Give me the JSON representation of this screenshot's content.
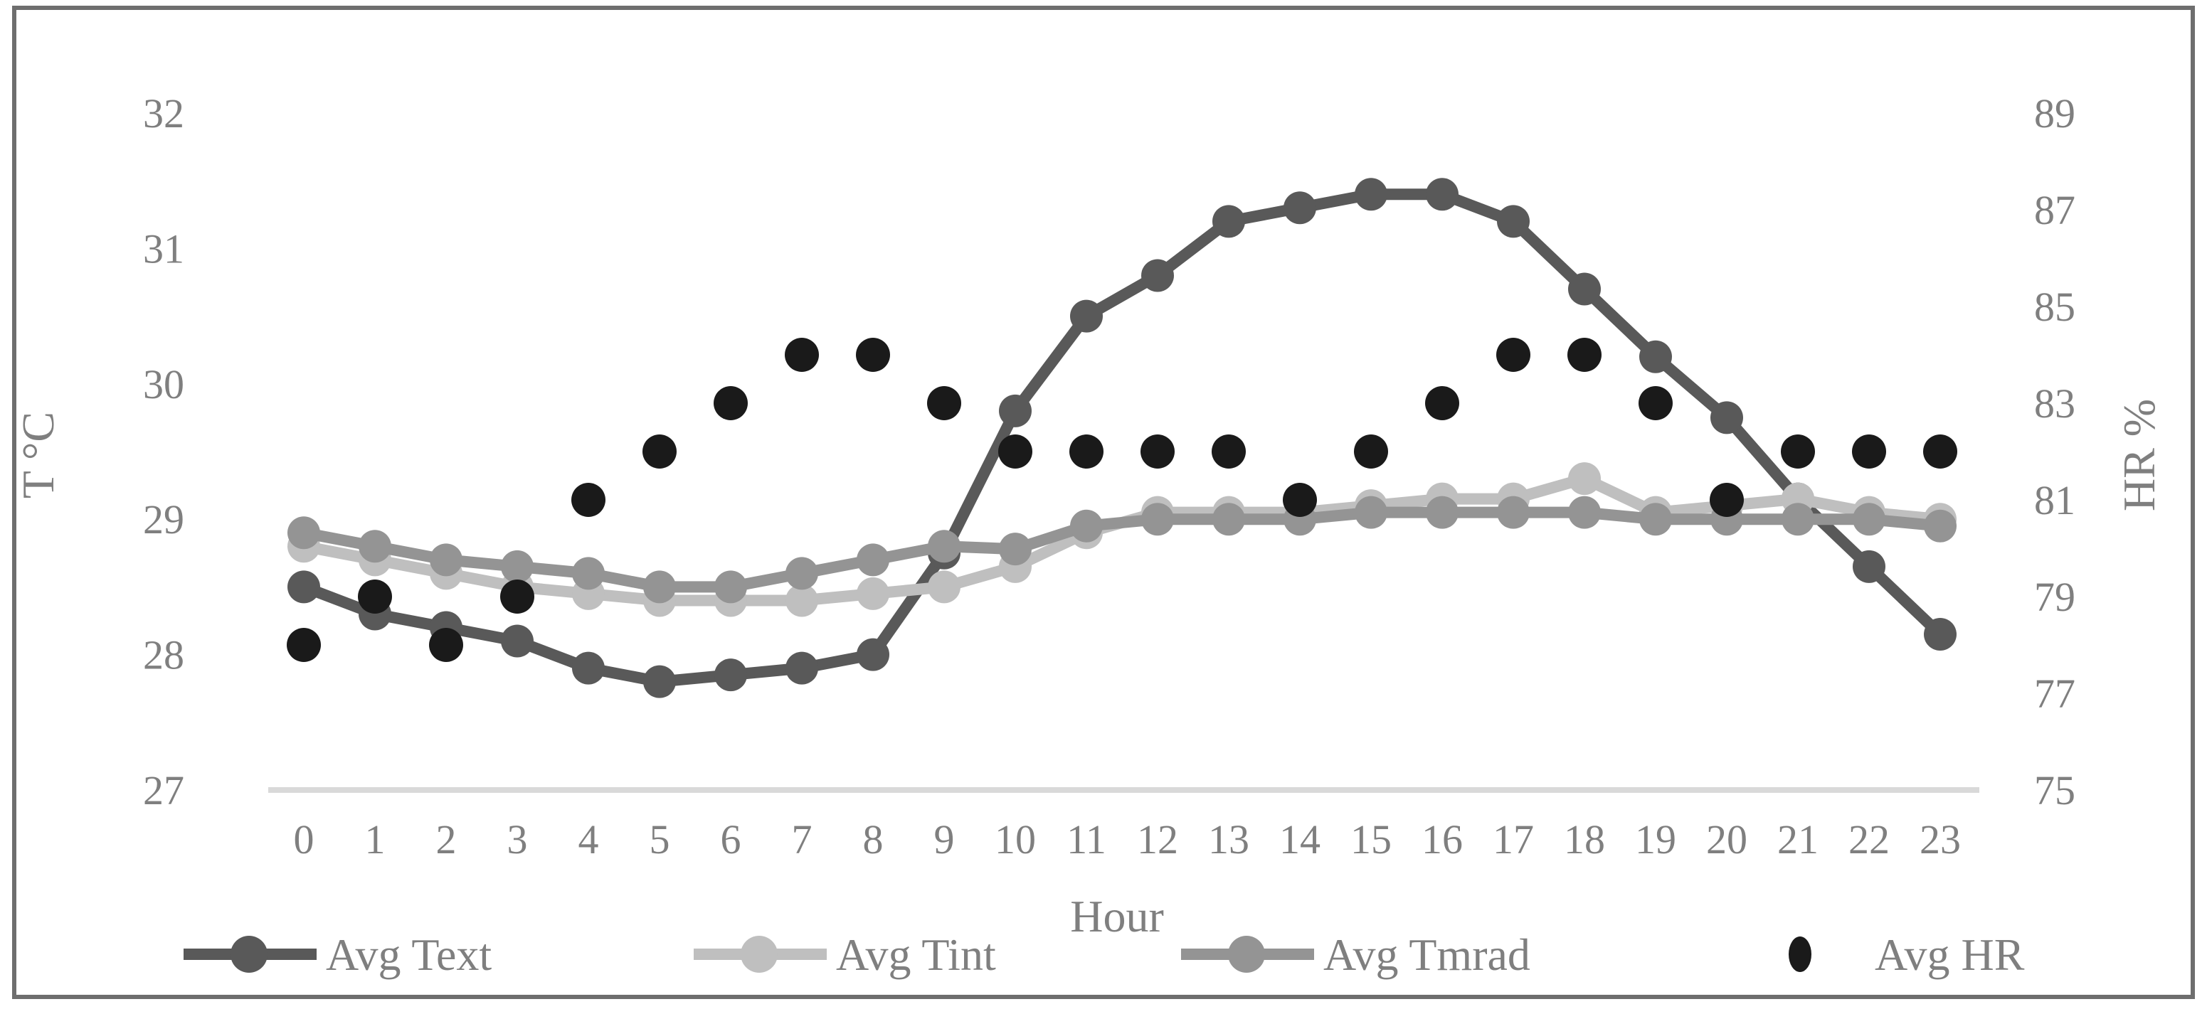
{
  "figure": {
    "background": "#ffffff",
    "border_color": "#6e6e6e",
    "text_color": "#7f7f7f",
    "gridline_color": "#d9d9d9"
  },
  "chart_data": {
    "type": "line",
    "title": "",
    "xlabel": "Hour",
    "ylabel_left": "T °C",
    "ylabel_right": "HR %",
    "x": [
      0,
      1,
      2,
      3,
      4,
      5,
      6,
      7,
      8,
      9,
      10,
      11,
      12,
      13,
      14,
      15,
      16,
      17,
      18,
      19,
      20,
      21,
      22,
      23
    ],
    "x_tick_labels": [
      "0",
      "1",
      "2",
      "3",
      "4",
      "5",
      "6",
      "7",
      "8",
      "9",
      "10",
      "11",
      "12",
      "13",
      "14",
      "15",
      "16",
      "17",
      "18",
      "19",
      "20",
      "21",
      "22",
      "23"
    ],
    "y_left_axis": {
      "min": 27,
      "max": 32,
      "tick_step": 1,
      "ticks": [
        32,
        31,
        30,
        29,
        28,
        27
      ]
    },
    "y_right_axis": {
      "min": 75,
      "max": 89,
      "tick_step": 2,
      "ticks": [
        89,
        87,
        85,
        83,
        81,
        79,
        77,
        75
      ]
    },
    "grid": "baseline-only",
    "legend_position": "bottom",
    "series": [
      {
        "name": "Avg Text",
        "axis": "left",
        "style": "line-markers",
        "color": "#595959",
        "values": [
          28.5,
          28.3,
          28.2,
          28.1,
          27.9,
          27.8,
          27.85,
          27.9,
          28.0,
          28.75,
          29.8,
          30.5,
          30.8,
          31.2,
          31.3,
          31.4,
          31.4,
          31.2,
          30.7,
          30.2,
          29.75,
          29.15,
          28.65,
          28.15
        ]
      },
      {
        "name": "Avg Tint",
        "axis": "left",
        "style": "line-markers",
        "color": "#bfbfbf",
        "values": [
          28.8,
          28.7,
          28.6,
          28.5,
          28.45,
          28.4,
          28.4,
          28.4,
          28.45,
          28.5,
          28.65,
          28.9,
          29.05,
          29.05,
          29.05,
          29.1,
          29.15,
          29.15,
          29.3,
          29.05,
          29.1,
          29.15,
          29.05,
          29.0
        ]
      },
      {
        "name": "Avg Tmrad",
        "axis": "left",
        "style": "line-markers",
        "color": "#949494",
        "values": [
          28.9,
          28.8,
          28.7,
          28.65,
          28.6,
          28.5,
          28.5,
          28.6,
          28.7,
          28.8,
          28.78,
          28.95,
          29.0,
          29.0,
          29.0,
          29.05,
          29.05,
          29.05,
          29.05,
          29.0,
          29.0,
          29.0,
          29.0,
          28.95
        ]
      },
      {
        "name": "Avg HR",
        "axis": "right",
        "style": "scatter",
        "color": "#1a1a1a",
        "values": [
          78,
          79,
          78,
          79,
          81,
          82,
          83,
          84,
          84,
          83,
          82,
          82,
          82,
          82,
          81,
          82,
          83,
          84,
          84,
          83,
          81,
          82,
          82,
          82
        ]
      }
    ]
  }
}
